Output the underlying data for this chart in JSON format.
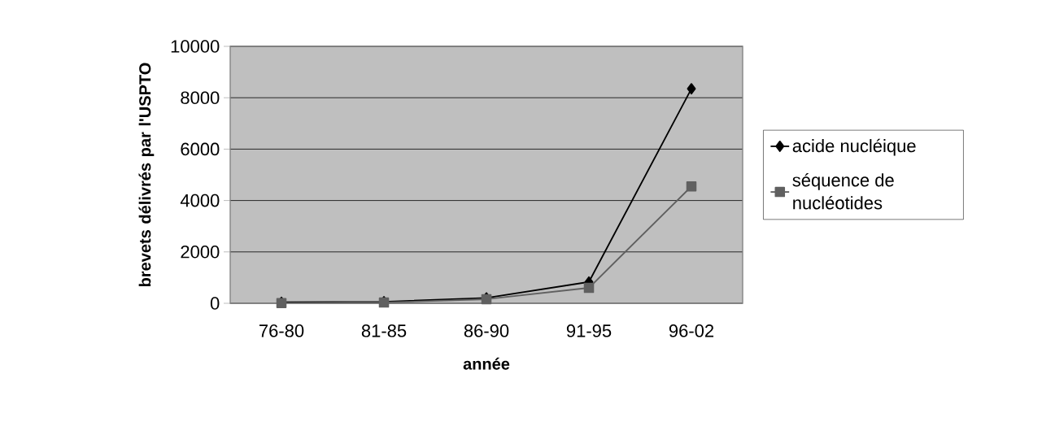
{
  "chart_data": {
    "type": "line",
    "xlabel": "année",
    "ylabel": "brevets délivrés par l'USPTO",
    "categories": [
      "76-80",
      "81-85",
      "86-90",
      "91-95",
      "96-02"
    ],
    "series": [
      {
        "name": "acide nucléique",
        "color": "#000000",
        "marker": "diamond",
        "values": [
          40,
          60,
          210,
          830,
          8350
        ]
      },
      {
        "name": "séquence de nucléotides",
        "color": "#606060",
        "marker": "square",
        "values": [
          10,
          30,
          160,
          600,
          4550
        ]
      }
    ],
    "ylim": [
      0,
      10000
    ],
    "yticks": [
      0,
      2000,
      4000,
      6000,
      8000,
      10000
    ],
    "grid": "y",
    "legend": "right"
  }
}
